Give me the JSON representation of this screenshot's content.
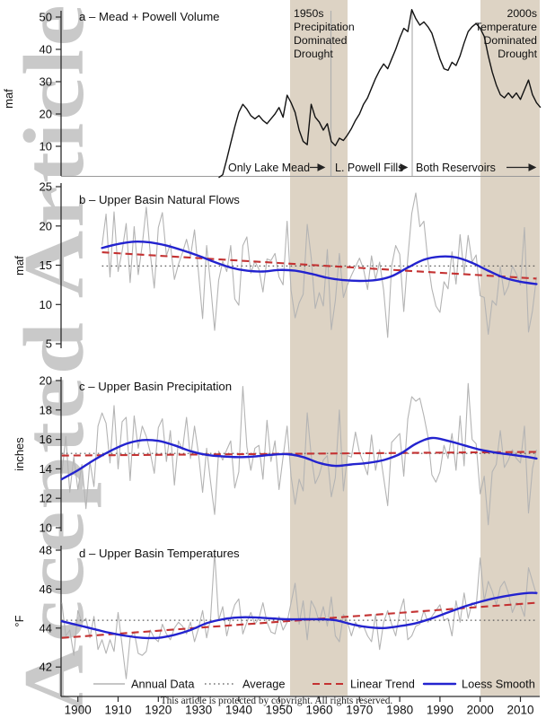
{
  "figure": {
    "watermark": "Accepted Article",
    "footer": "This article is protected by copyright. All rights reserved."
  },
  "colors": {
    "annual": "#b4b4b4",
    "average": "#595959",
    "trend": "#c43232",
    "loess": "#2323cf",
    "storage_line": "#121212",
    "drought_band": "#ddd3c4",
    "watermark": "#c5c5c5"
  },
  "legend": {
    "items": [
      {
        "label": "Annual Data"
      },
      {
        "label": "Average"
      },
      {
        "label": "Linear Trend"
      },
      {
        "label": "Loess Smooth"
      }
    ]
  },
  "annotations": {
    "drought_1950s": {
      "lines": [
        "1950s",
        "Precipitation",
        "Dominated",
        "Drought"
      ],
      "years": [
        1953,
        1967
      ]
    },
    "drought_2000s": {
      "lines": [
        "2000s",
        "Temperature",
        "Dominated",
        "Drought"
      ],
      "years": [
        2000,
        2015
      ]
    },
    "reservoir_phases": [
      {
        "label": "Only Lake Mead",
        "until_year": 1963
      },
      {
        "label": "L. Powell Fills",
        "until_year": 1983
      },
      {
        "label": "Both Reservoirs",
        "until_year": 2015
      }
    ],
    "reference_years": [
      1963,
      1983
    ]
  },
  "chart_data": {
    "type": "line",
    "x_range": [
      1896,
      2015
    ],
    "x_ticks": [
      1900,
      1910,
      1920,
      1930,
      1940,
      1950,
      1960,
      1970,
      1980,
      1990,
      2000,
      2010
    ],
    "drought_bands": [
      {
        "name": "1950s Precipitation Dominated Drought",
        "from": 1953,
        "to": 1967
      },
      {
        "name": "2000s Temperature Dominated Drought",
        "from": 2000,
        "to": 2015
      }
    ],
    "panels": [
      {
        "id": "a",
        "title": "a – Mead + Powell Volume",
        "ylabel": "maf",
        "yticks": [
          10,
          20,
          30,
          40,
          50
        ],
        "ylim": [
          0,
          52
        ],
        "start_year": 1935,
        "annual": [
          0.3,
          1.2,
          6,
          11,
          16,
          20.5,
          23,
          21.5,
          19.5,
          18.5,
          19.5,
          18,
          17,
          18.5,
          20,
          22,
          19,
          25.8,
          23.5,
          20.5,
          15,
          11.5,
          10.5,
          23,
          19,
          17.5,
          15,
          17,
          11.5,
          10.2,
          12.5,
          11.8,
          13.5,
          15.5,
          18,
          20,
          23,
          25,
          28,
          31,
          33.5,
          35.5,
          34,
          37,
          40,
          43.5,
          46.5,
          45.5,
          52.3,
          49.5,
          47.5,
          48.5,
          47,
          45,
          41,
          37,
          34,
          33.5,
          36,
          35,
          38,
          42,
          45.5,
          47,
          48,
          46.5,
          44,
          38,
          33,
          29,
          26,
          25,
          26.5,
          25,
          26.5,
          24.5,
          27.5,
          30.5,
          26,
          23.5,
          22
        ]
      },
      {
        "id": "b",
        "title": "b – Upper Basin Natural Flows",
        "ylabel": "maf",
        "yticks": [
          5,
          10,
          15,
          20,
          25
        ],
        "ylim": [
          5,
          25
        ],
        "start_year": 1906,
        "average": 14.9,
        "trend": {
          "start": 16.65,
          "end": 13.3
        },
        "loess": [
          [
            1906,
            17.2
          ],
          [
            1910,
            17.7
          ],
          [
            1914,
            18.0
          ],
          [
            1918,
            17.9
          ],
          [
            1922,
            17.5
          ],
          [
            1926,
            16.9
          ],
          [
            1930,
            16.2
          ],
          [
            1934,
            15.4
          ],
          [
            1938,
            14.7
          ],
          [
            1942,
            14.3
          ],
          [
            1946,
            14.2
          ],
          [
            1950,
            14.4
          ],
          [
            1954,
            14.3
          ],
          [
            1958,
            13.9
          ],
          [
            1962,
            13.4
          ],
          [
            1966,
            13.1
          ],
          [
            1970,
            13.0
          ],
          [
            1974,
            13.1
          ],
          [
            1978,
            13.6
          ],
          [
            1982,
            14.7
          ],
          [
            1986,
            15.7
          ],
          [
            1990,
            16.1
          ],
          [
            1994,
            16.0
          ],
          [
            1998,
            15.3
          ],
          [
            2002,
            14.3
          ],
          [
            2006,
            13.4
          ],
          [
            2010,
            12.9
          ],
          [
            2014,
            12.6
          ]
        ],
        "annual": [
          17.5,
          21.5,
          13.5,
          21.8,
          14.2,
          16.8,
          20.3,
          12.8,
          19.9,
          13.8,
          17.6,
          22.4,
          16.5,
          12.1,
          19.8,
          21.7,
          16.2,
          17.7,
          13.2,
          15.1,
          16.6,
          18.3,
          16.1,
          19.5,
          14.0,
          8.2,
          17.5,
          12.5,
          6.7,
          13.1,
          15.5,
          14.2,
          17.5,
          10.7,
          9.9,
          17.5,
          18.6,
          14.0,
          15.5,
          14.5,
          11.6,
          15.8,
          15.6,
          16.5,
          13.5,
          12.5,
          20.6,
          11.8,
          8.3,
          10.2,
          11.3,
          20.2,
          16.0,
          9.5,
          11.5,
          9.8,
          17.0,
          6.8,
          10.5,
          16.5,
          10.9,
          12.5,
          13.7,
          14.8,
          15.9,
          14.5,
          11.9,
          16.2,
          13.2,
          15.4,
          11.8,
          5.8,
          14.9,
          17.5,
          16.4,
          9.1,
          15.9,
          21.6,
          24.2,
          19.9,
          20.6,
          15.5,
          12.0,
          9.8,
          9.0,
          12.9,
          12.0,
          16.7,
          12.6,
          18.9,
          14.0,
          18.8,
          15.4,
          16.3,
          11.1,
          10.9,
          6.2,
          10.5,
          9.9,
          14.8,
          11.2,
          12.3,
          14.9,
          13.9,
          12.5,
          19.8,
          6.5,
          9.2,
          13.5
        ]
      },
      {
        "id": "c",
        "title": "c – Upper Basin Precipitation",
        "ylabel": "inches",
        "yticks": [
          10,
          12,
          14,
          16,
          18,
          20
        ],
        "ylim": [
          10,
          20
        ],
        "start_year": 1896,
        "average": 15.05,
        "trend": {
          "start": 14.9,
          "end": 15.15
        },
        "loess": [
          [
            1896,
            13.3
          ],
          [
            1900,
            13.9
          ],
          [
            1904,
            14.6
          ],
          [
            1908,
            15.2
          ],
          [
            1912,
            15.7
          ],
          [
            1916,
            15.95
          ],
          [
            1920,
            15.9
          ],
          [
            1924,
            15.6
          ],
          [
            1928,
            15.2
          ],
          [
            1932,
            14.95
          ],
          [
            1936,
            14.85
          ],
          [
            1940,
            14.8
          ],
          [
            1944,
            14.85
          ],
          [
            1948,
            14.95
          ],
          [
            1952,
            15.0
          ],
          [
            1956,
            14.8
          ],
          [
            1960,
            14.4
          ],
          [
            1964,
            14.2
          ],
          [
            1968,
            14.3
          ],
          [
            1972,
            14.4
          ],
          [
            1976,
            14.6
          ],
          [
            1980,
            15.0
          ],
          [
            1984,
            15.7
          ],
          [
            1988,
            16.1
          ],
          [
            1992,
            15.9
          ],
          [
            1996,
            15.6
          ],
          [
            2000,
            15.3
          ],
          [
            2004,
            15.1
          ],
          [
            2008,
            14.95
          ],
          [
            2012,
            14.8
          ],
          [
            2014,
            14.7
          ]
        ],
        "annual": [
          13.6,
          16.2,
          12.4,
          14.8,
          12.6,
          14.3,
          11.3,
          14.5,
          12.8,
          16.9,
          17.8,
          17.1,
          14.4,
          18.3,
          14.0,
          17.2,
          17.5,
          13.2,
          17.6,
          15.4,
          16.9,
          16.2,
          15.1,
          13.7,
          16.8,
          17.4,
          14.5,
          16.6,
          12.9,
          15.9,
          15.3,
          17.5,
          14.7,
          16.9,
          15.0,
          12.4,
          15.4,
          13.1,
          10.9,
          15.2,
          14.6,
          15.3,
          15.9,
          12.7,
          13.8,
          19.6,
          15.5,
          13.9,
          15.4,
          15.6,
          13.3,
          17.3,
          14.5,
          15.9,
          12.6,
          14.8,
          16.9,
          13.5,
          11.6,
          13.3,
          12.5,
          17.8,
          14.9,
          13.0,
          13.6,
          14.6,
          14.9,
          12.1,
          13.4,
          18.0,
          12.5,
          14.9,
          14.8,
          16.5,
          15.1,
          14.4,
          13.6,
          16.3,
          13.9,
          15.3,
          13.4,
          11.5,
          15.8,
          16.1,
          16.4,
          13.5,
          17.4,
          18.9,
          18.6,
          18.8,
          17.6,
          16.2,
          13.6,
          13.1,
          13.8,
          15.6,
          14.7,
          16.4,
          13.9,
          17.6,
          14.2,
          19.8,
          16.0,
          15.7,
          12.3,
          13.5,
          10.2,
          13.8,
          14.3,
          16.6,
          14.1,
          14.6,
          15.3,
          14.7,
          14.4,
          16.9,
          11.0,
          14.0,
          15.3
        ]
      },
      {
        "id": "d",
        "title": "d – Upper Basin Temperatures",
        "ylabel": "°F",
        "yticks": [
          42,
          44,
          46,
          48
        ],
        "ylim": [
          41,
          48
        ],
        "start_year": 1896,
        "average": 44.4,
        "trend": {
          "start": 43.5,
          "end": 45.3
        },
        "loess": [
          [
            1896,
            44.35
          ],
          [
            1900,
            44.15
          ],
          [
            1904,
            43.95
          ],
          [
            1908,
            43.75
          ],
          [
            1912,
            43.6
          ],
          [
            1916,
            43.5
          ],
          [
            1920,
            43.5
          ],
          [
            1924,
            43.65
          ],
          [
            1928,
            43.9
          ],
          [
            1932,
            44.25
          ],
          [
            1936,
            44.45
          ],
          [
            1940,
            44.55
          ],
          [
            1944,
            44.55
          ],
          [
            1948,
            44.5
          ],
          [
            1952,
            44.45
          ],
          [
            1956,
            44.45
          ],
          [
            1960,
            44.45
          ],
          [
            1964,
            44.4
          ],
          [
            1968,
            44.2
          ],
          [
            1972,
            44.05
          ],
          [
            1976,
            44.0
          ],
          [
            1980,
            44.1
          ],
          [
            1984,
            44.25
          ],
          [
            1988,
            44.5
          ],
          [
            1992,
            44.8
          ],
          [
            1996,
            45.1
          ],
          [
            2000,
            45.35
          ],
          [
            2004,
            45.55
          ],
          [
            2008,
            45.7
          ],
          [
            2012,
            45.8
          ],
          [
            2014,
            45.8
          ]
        ],
        "annual": [
          45.3,
          43.6,
          43.9,
          42.6,
          44.9,
          44.3,
          44.5,
          43.5,
          44.6,
          42.9,
          43.4,
          42.7,
          43.4,
          42.8,
          44.8,
          43.1,
          41.4,
          43.5,
          43.8,
          42.7,
          42.6,
          42.8,
          43.9,
          43.5,
          43.3,
          44.2,
          43.7,
          43.4,
          44.0,
          44.3,
          44.1,
          43.7,
          44.3,
          43.3,
          44.0,
          44.9,
          43.5,
          44.5,
          47.9,
          44.4,
          45.1,
          43.6,
          44.5,
          45.2,
          45.5,
          43.7,
          44.3,
          44.8,
          44.2,
          44.5,
          45.3,
          44.3,
          43.8,
          43.7,
          44.6,
          43.9,
          44.3,
          45.3,
          46.3,
          44.2,
          45.4,
          43.4,
          45.4,
          45.0,
          44.3,
          45.1,
          44.1,
          45.6,
          43.6,
          43.3,
          44.7,
          44.3,
          43.6,
          44.3,
          44.0,
          44.1,
          43.6,
          43.3,
          44.7,
          42.9,
          44.3,
          44.9,
          44.2,
          43.6,
          44.8,
          45.5,
          43.4,
          43.6,
          44.1,
          44.2,
          44.9,
          44.3,
          44.6,
          44.9,
          45.2,
          44.4,
          44.5,
          43.6,
          45.4,
          44.3,
          45.8,
          44.5,
          45.3,
          45.1,
          47.6,
          45.4,
          46.4,
          45.9,
          45.2,
          46.1,
          46.4,
          45.8,
          44.8,
          45.3,
          45.2,
          44.6,
          47.1,
          46.4,
          45.7
        ]
      }
    ]
  }
}
